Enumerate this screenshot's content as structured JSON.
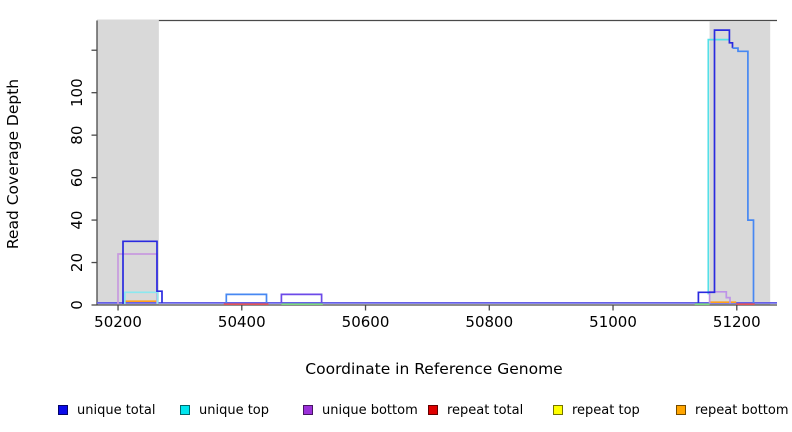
{
  "chart_data": {
    "type": "line",
    "title": "",
    "xlabel": "Coordinate in Reference Genome",
    "ylabel": "Read Coverage Depth",
    "xlim": [
      50166,
      51265
    ],
    "ylim": [
      0,
      134
    ],
    "grid": false,
    "x_ticks": [
      {
        "value": 50200,
        "label": "50200"
      },
      {
        "value": 50400,
        "label": "50400"
      },
      {
        "value": 50600,
        "label": "50600"
      },
      {
        "value": 50800,
        "label": "50800"
      },
      {
        "value": 51000,
        "label": "51000"
      },
      {
        "value": 51200,
        "label": "51200"
      }
    ],
    "y_ticks": [
      {
        "value": 0,
        "label": "0"
      },
      {
        "value": 20,
        "label": "20"
      },
      {
        "value": 40,
        "label": "40"
      },
      {
        "value": 60,
        "label": "60"
      },
      {
        "value": 80,
        "label": "80"
      },
      {
        "value": 100,
        "label": "100"
      },
      {
        "value": 120,
        "label": ""
      }
    ],
    "shade_color": "#d9d9d9",
    "frame_color": "#4a4a4a",
    "shaded_regions": [
      {
        "name": "highlight-region-left",
        "x0": 50166,
        "x1": 50266
      },
      {
        "name": "highlight-region-right",
        "x0": 51156,
        "x1": 51254
      }
    ],
    "legend": [
      {
        "label": "unique total",
        "color": "#0b0bea"
      },
      {
        "label": "unique top",
        "color": "#00e5ee"
      },
      {
        "label": "unique bottom",
        "color": "#9b30d9"
      },
      {
        "label": "repeat total",
        "color": "#df0000"
      },
      {
        "label": "repeat top",
        "color": "#ffff00"
      },
      {
        "label": "repeat bottom",
        "color": "#ffa500"
      }
    ],
    "segments": [
      {
        "name": "unique-baseline",
        "color": "#6660e8",
        "points": [
          [
            50166,
            1
          ],
          [
            51265,
            1
          ]
        ]
      },
      {
        "name": "repeat-total-mid",
        "color": "#e25555",
        "points": [
          [
            50371,
            0.4
          ],
          [
            50443,
            0.4
          ]
        ]
      },
      {
        "name": "repeat-total-right",
        "color": "#e25555",
        "points": [
          [
            51199,
            0.4
          ],
          [
            51229,
            0.4
          ]
        ]
      },
      {
        "name": "repeat-top-overlap-mid",
        "color": "#7fd87f",
        "points": [
          [
            50464,
            0.4
          ],
          [
            50531,
            0.4
          ]
        ]
      },
      {
        "name": "repeat-top-overlap-right",
        "color": "#7fd87f",
        "points": [
          [
            51132,
            0.4
          ],
          [
            51156,
            0.4
          ]
        ]
      },
      {
        "name": "repeat-bottom-peak1",
        "color": "#ffa01e",
        "points": [
          [
            50208,
            1.8
          ],
          [
            50264,
            1.8
          ]
        ]
      },
      {
        "name": "repeat-bottom-right",
        "color": "#ffa01e",
        "points": [
          [
            51155,
            1.3
          ],
          [
            51199,
            1.3
          ]
        ]
      },
      {
        "name": "unique-bottom-peak1",
        "color": "#c89adf",
        "points": [
          [
            50200,
            0.5
          ],
          [
            50200,
            24
          ],
          [
            50263,
            24
          ],
          [
            50263,
            0.5
          ]
        ]
      },
      {
        "name": "unique-top-peak1",
        "color": "#8be8ef",
        "points": [
          [
            50211,
            0.5
          ],
          [
            50211,
            6
          ],
          [
            50264,
            6
          ],
          [
            50264,
            0.5
          ]
        ]
      },
      {
        "name": "unique-total-peak1",
        "color": "#2a2adf",
        "points": [
          [
            50208,
            0.5
          ],
          [
            50208,
            30
          ],
          [
            50263,
            30
          ],
          [
            50263,
            6.5
          ],
          [
            50271,
            6.5
          ],
          [
            50271,
            1
          ]
        ]
      },
      {
        "name": "unique-total-box-mid",
        "color": "#4788f2",
        "points": [
          [
            50375,
            1
          ],
          [
            50375,
            5
          ],
          [
            50440,
            5
          ],
          [
            50440,
            1
          ]
        ]
      },
      {
        "name": "unique-bottom-box-mid",
        "color": "#6c4ae8",
        "points": [
          [
            50464,
            1
          ],
          [
            50464,
            5
          ],
          [
            50529,
            5
          ],
          [
            50529,
            1
          ]
        ]
      },
      {
        "name": "unique-top-right-spike",
        "color": "#55dfe8",
        "points": [
          [
            51154,
            5
          ],
          [
            51154,
            125
          ],
          [
            51189,
            125
          ]
        ]
      },
      {
        "name": "unique-bottom-right-box",
        "color": "#bd93e8",
        "points": [
          [
            51156,
            0.8
          ],
          [
            51156,
            6.2
          ],
          [
            51183,
            6.2
          ],
          [
            51183,
            3.5
          ],
          [
            51189,
            3.5
          ],
          [
            51189,
            0.8
          ]
        ]
      },
      {
        "name": "unique-total-right-spike",
        "color": "#2a2adf",
        "points": [
          [
            51138,
            1
          ],
          [
            51138,
            6
          ],
          [
            51164,
            6
          ],
          [
            51164,
            129.5
          ],
          [
            51188,
            129.5
          ],
          [
            51188,
            123.5
          ],
          [
            51193,
            123.5
          ],
          [
            51193,
            121
          ]
        ]
      },
      {
        "name": "unique-total-right-slope",
        "color": "#4788f2",
        "points": [
          [
            51193,
            121
          ],
          [
            51202,
            121
          ],
          [
            51202,
            119.5
          ],
          [
            51218,
            119.5
          ],
          [
            51218,
            40
          ],
          [
            51227,
            40
          ],
          [
            51227,
            1
          ]
        ]
      }
    ]
  }
}
